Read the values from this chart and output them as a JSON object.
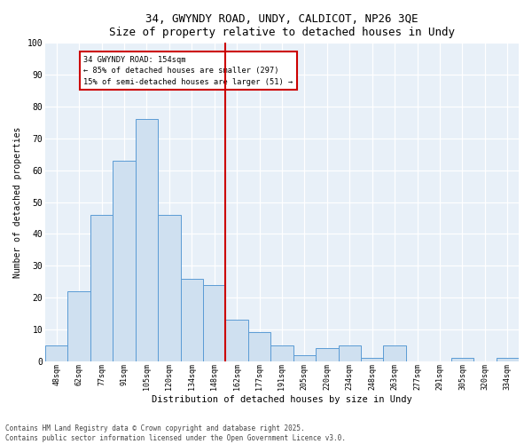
{
  "title_line1": "34, GWYNDY ROAD, UNDY, CALDICOT, NP26 3QE",
  "title_line2": "Size of property relative to detached houses in Undy",
  "xlabel": "Distribution of detached houses by size in Undy",
  "ylabel": "Number of detached properties",
  "categories": [
    "48sqm",
    "62sqm",
    "77sqm",
    "91sqm",
    "105sqm",
    "120sqm",
    "134sqm",
    "148sqm",
    "162sqm",
    "177sqm",
    "191sqm",
    "205sqm",
    "220sqm",
    "234sqm",
    "248sqm",
    "263sqm",
    "277sqm",
    "291sqm",
    "305sqm",
    "320sqm",
    "334sqm"
  ],
  "values": [
    5,
    22,
    46,
    63,
    76,
    46,
    26,
    24,
    13,
    9,
    5,
    2,
    4,
    5,
    1,
    5,
    0,
    0,
    1,
    0,
    1
  ],
  "bar_color": "#cfe0f0",
  "bar_edge_color": "#5b9bd5",
  "vline_color": "#cc0000",
  "annotation_title": "34 GWYNDY ROAD: 154sqm",
  "annotation_line1": "← 85% of detached houses are smaller (297)",
  "annotation_line2": "15% of semi-detached houses are larger (51) →",
  "annotation_box_color": "#cc0000",
  "ylim": [
    0,
    100
  ],
  "yticks": [
    0,
    10,
    20,
    30,
    40,
    50,
    60,
    70,
    80,
    90,
    100
  ],
  "background_color": "#e8f0f8",
  "footer": "Contains HM Land Registry data © Crown copyright and database right 2025.\nContains public sector information licensed under the Open Government Licence v3.0.",
  "figsize": [
    6.0,
    5.0
  ],
  "dpi": 100
}
